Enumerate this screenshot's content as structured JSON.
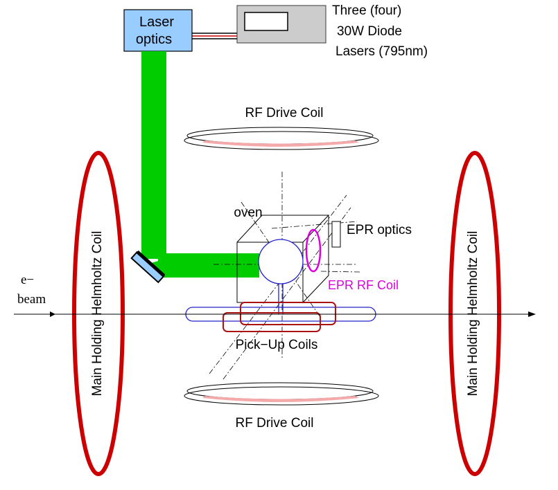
{
  "labels": {
    "laser_optics_line1": "Laser",
    "laser_optics_line2": "optics",
    "diode_line1": "Three (four)",
    "diode_line2": "30W Diode",
    "diode_line3": "Lasers (795nm)",
    "rf_drive_coil_top": "RF Drive Coil",
    "rf_drive_coil_bottom": "RF Drive Coil",
    "oven": "oven",
    "epr_optics": "EPR optics",
    "epr_rf_coil": "EPR RF Coil",
    "ebeam_line1": "e−",
    "ebeam_line2": "beam",
    "pickup_coils": "Pick−Up Coils",
    "helmholtz_left": "Main Holding Helmholtz Coil",
    "helmholtz_right": "Main Holding Helmholtz Coil"
  },
  "colors": {
    "laser_beam": "#00cc00",
    "laser_box": "#99ccff",
    "diode_box": "#cccccc",
    "helmholtz": "#cc0000",
    "rf_coil_fill": "#f4aaaa",
    "pickup_coil": "#aa1111",
    "epr": "#dd00dd",
    "cell": "#2222cc",
    "mirror": "#99ccff"
  }
}
